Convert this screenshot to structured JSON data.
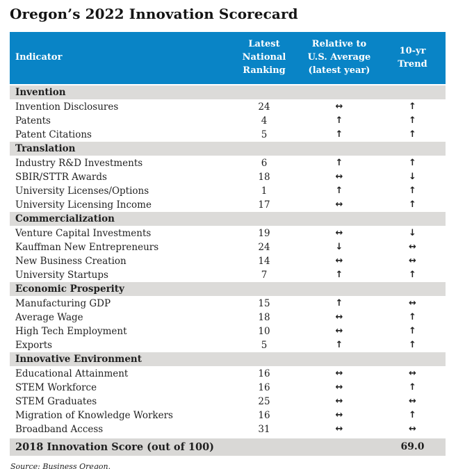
{
  "title": "Oregon’s 2022 Innovation Scorecard",
  "colors": {
    "header_blue": "#0984c6",
    "section_gray": "#dcdbd9",
    "footer_gray": "#d9d8d6",
    "text": "#1f1f1f"
  },
  "arrows": {
    "up": "↑",
    "down": "↓",
    "flat": "↔"
  },
  "table": {
    "columns": [
      "Indicator",
      "Latest\nNational\nRanking",
      "Relative to\nU.S. Average\n(latest year)",
      "10-yr\nTrend"
    ],
    "footer": {
      "label": "2018 Innovation Score (out of 100)",
      "value": "69.0"
    }
  },
  "source": "Source: Business Oregon.",
  "chart_data": {
    "type": "table",
    "title": "Oregon’s 2022 Innovation Scorecard",
    "columns": [
      "Indicator",
      "Latest National Ranking",
      "Relative to U.S. Average (latest year)",
      "10-yr Trend"
    ],
    "sections": [
      {
        "name": "Invention",
        "rows": [
          {
            "indicator": "Invention Disclosures",
            "ranking": "24",
            "relative": "↔",
            "trend": "↑"
          },
          {
            "indicator": "Patents",
            "ranking": "4",
            "relative": "↑",
            "trend": "↑"
          },
          {
            "indicator": "Patent Citations",
            "ranking": "5",
            "relative": "↑",
            "trend": "↑"
          }
        ]
      },
      {
        "name": "Translation",
        "rows": [
          {
            "indicator": "Industry R&D Investments",
            "ranking": "6",
            "relative": "↑",
            "trend": "↑"
          },
          {
            "indicator": "SBIR/STTR Awards",
            "ranking": "18",
            "relative": "↔",
            "trend": "↓"
          },
          {
            "indicator": "University Licenses/Options",
            "ranking": "1",
            "relative": "↑",
            "trend": "↑"
          },
          {
            "indicator": "University Licensing Income",
            "ranking": "17",
            "relative": "↔",
            "trend": "↑"
          }
        ]
      },
      {
        "name": "Commercialization",
        "rows": [
          {
            "indicator": "Venture Capital Investments",
            "ranking": "19",
            "relative": "↔",
            "trend": "↓"
          },
          {
            "indicator": "Kauffman New Entrepreneurs",
            "ranking": "24",
            "relative": "↓",
            "trend": "↔"
          },
          {
            "indicator": "New Business Creation",
            "ranking": "14",
            "relative": "↔",
            "trend": "↔"
          },
          {
            "indicator": "University Startups",
            "ranking": "7",
            "relative": "↑",
            "trend": "↑"
          }
        ]
      },
      {
        "name": "Economic Prosperity",
        "rows": [
          {
            "indicator": "Manufacturing GDP",
            "ranking": "15",
            "relative": "↑",
            "trend": "↔"
          },
          {
            "indicator": "Average Wage",
            "ranking": "18",
            "relative": "↔",
            "trend": "↑"
          },
          {
            "indicator": "High Tech Employment",
            "ranking": "10",
            "relative": "↔",
            "trend": "↑"
          },
          {
            "indicator": "Exports",
            "ranking": "5",
            "relative": "↑",
            "trend": "↑"
          }
        ]
      },
      {
        "name": "Innovative Environment",
        "rows": [
          {
            "indicator": "Educational Attainment",
            "ranking": "16",
            "relative": "↔",
            "trend": "↔"
          },
          {
            "indicator": "STEM Workforce",
            "ranking": "16",
            "relative": "↔",
            "trend": "↑"
          },
          {
            "indicator": "STEM Graduates",
            "ranking": "25",
            "relative": "↔",
            "trend": "↔"
          },
          {
            "indicator": "Migration of Knowledge Workers",
            "ranking": "16",
            "relative": "↔",
            "trend": "↑"
          },
          {
            "indicator": "Broadband Access",
            "ranking": "31",
            "relative": "↔",
            "trend": "↔"
          }
        ]
      }
    ],
    "footer_row": {
      "label": "2018 Innovation Score (out of 100)",
      "value": "69.0"
    },
    "source": "Source: Business Oregon."
  }
}
